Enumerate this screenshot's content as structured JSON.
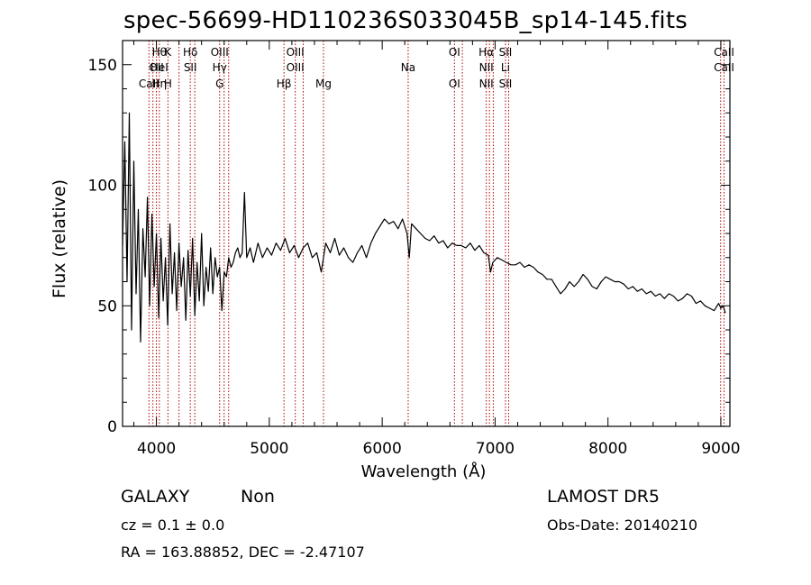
{
  "chart_data": {
    "type": "line",
    "title": "spec-56699-HD110236S033045B_sp14-145.fits",
    "xlabel": "Wavelength (Å)",
    "ylabel": "Flux (relative)",
    "xlim": [
      3700,
      9080
    ],
    "ylim": [
      0,
      160
    ],
    "xticks": [
      4000,
      5000,
      6000,
      7000,
      8000,
      9000
    ],
    "yticks": [
      0,
      50,
      100,
      150
    ],
    "grid": false,
    "series": [
      {
        "color": "#000000",
        "x": [
          3700,
          3720,
          3740,
          3760,
          3780,
          3800,
          3820,
          3840,
          3860,
          3880,
          3900,
          3920,
          3940,
          3960,
          3980,
          4000,
          4020,
          4040,
          4060,
          4080,
          4100,
          4120,
          4140,
          4160,
          4180,
          4200,
          4220,
          4240,
          4260,
          4280,
          4300,
          4320,
          4340,
          4360,
          4380,
          4400,
          4420,
          4440,
          4460,
          4480,
          4500,
          4520,
          4540,
          4560,
          4580,
          4600,
          4620,
          4640,
          4660,
          4680,
          4700,
          4720,
          4740,
          4760,
          4780,
          4800,
          4830,
          4860,
          4900,
          4940,
          4980,
          5020,
          5060,
          5100,
          5140,
          5180,
          5220,
          5260,
          5300,
          5340,
          5380,
          5420,
          5460,
          5500,
          5540,
          5580,
          5620,
          5660,
          5700,
          5740,
          5780,
          5820,
          5860,
          5900,
          5940,
          5980,
          6020,
          6060,
          6100,
          6140,
          6180,
          6220,
          6240,
          6260,
          6300,
          6340,
          6380,
          6420,
          6460,
          6500,
          6540,
          6580,
          6620,
          6660,
          6700,
          6740,
          6780,
          6820,
          6860,
          6900,
          6940,
          6960,
          6980,
          7020,
          7060,
          7100,
          7140,
          7180,
          7220,
          7260,
          7300,
          7340,
          7380,
          7420,
          7460,
          7500,
          7540,
          7580,
          7620,
          7660,
          7700,
          7740,
          7780,
          7820,
          7860,
          7900,
          7940,
          7980,
          8020,
          8060,
          8100,
          8140,
          8180,
          8220,
          8260,
          8300,
          8340,
          8380,
          8420,
          8460,
          8500,
          8540,
          8580,
          8620,
          8660,
          8700,
          8740,
          8780,
          8820,
          8860,
          8900,
          8940,
          8980,
          9000,
          9020,
          9040
        ],
        "y": [
          75,
          118,
          60,
          130,
          40,
          110,
          55,
          90,
          35,
          82,
          62,
          95,
          50,
          88,
          58,
          80,
          45,
          78,
          52,
          70,
          42,
          84,
          55,
          72,
          48,
          76,
          58,
          70,
          44,
          73,
          54,
          78,
          46,
          68,
          52,
          80,
          50,
          66,
          56,
          74,
          55,
          70,
          62,
          66,
          48,
          64,
          62,
          70,
          66,
          68,
          72,
          74,
          70,
          72,
          97,
          70,
          74,
          68,
          76,
          70,
          74,
          71,
          76,
          73,
          78,
          72,
          75,
          70,
          74,
          76,
          70,
          72,
          64,
          76,
          72,
          78,
          71,
          74,
          70,
          68,
          72,
          75,
          70,
          76,
          80,
          83,
          86,
          84,
          85,
          82,
          86,
          80,
          70,
          84,
          82,
          80,
          78,
          77,
          79,
          76,
          77,
          74,
          76,
          75,
          75,
          74,
          76,
          73,
          75,
          72,
          71,
          64,
          68,
          70,
          69,
          68,
          67,
          67,
          68,
          66,
          67,
          66,
          64,
          63,
          61,
          61,
          58,
          55,
          57,
          60,
          58,
          60,
          63,
          61,
          58,
          57,
          60,
          62,
          61,
          60,
          60,
          59,
          57,
          58,
          56,
          57,
          55,
          56,
          54,
          55,
          53,
          55,
          54,
          52,
          53,
          55,
          54,
          51,
          52,
          50,
          49,
          48,
          51,
          49,
          50,
          47
        ]
      }
    ],
    "lines": [
      {
        "x": 3934,
        "labels": [
          "",
          "",
          "CaII"
        ]
      },
      {
        "x": 3969,
        "labels": [
          "",
          "",
          ""
        ]
      },
      {
        "x": 4000,
        "labels": [
          "",
          "OII",
          ""
        ]
      },
      {
        "x": 4026,
        "labels": [
          "Hθ",
          "HeI",
          "Hη"
        ]
      },
      {
        "x": 4102,
        "labels": [
          "K",
          "",
          "H"
        ]
      },
      {
        "x": 4200,
        "labels": [
          "",
          "",
          ""
        ]
      },
      {
        "x": 4300,
        "labels": [
          "Hδ",
          "SII",
          ""
        ]
      },
      {
        "x": 4340,
        "labels": [
          "",
          "",
          ""
        ]
      },
      {
        "x": 4560,
        "labels": [
          "OIII",
          "Hγ",
          "G"
        ]
      },
      {
        "x": 4600,
        "labels": [
          "",
          "",
          ""
        ]
      },
      {
        "x": 4640,
        "labels": [
          "",
          "",
          ""
        ]
      },
      {
        "x": 5130,
        "labels": [
          "",
          "",
          "Hβ"
        ]
      },
      {
        "x": 5230,
        "labels": [
          "OIII",
          "OIII",
          ""
        ]
      },
      {
        "x": 5300,
        "labels": [
          "",
          "",
          ""
        ]
      },
      {
        "x": 5480,
        "labels": [
          "",
          "",
          "Mg"
        ]
      },
      {
        "x": 6230,
        "labels": [
          "",
          "Na",
          ""
        ]
      },
      {
        "x": 6640,
        "labels": [
          "OI",
          "",
          "OI"
        ]
      },
      {
        "x": 6710,
        "labels": [
          "",
          "",
          ""
        ]
      },
      {
        "x": 6922,
        "labels": [
          "Hα",
          "NII",
          "NII"
        ]
      },
      {
        "x": 6950,
        "labels": [
          "",
          "",
          ""
        ]
      },
      {
        "x": 6984,
        "labels": [
          "",
          "",
          ""
        ]
      },
      {
        "x": 7092,
        "labels": [
          "SII",
          "Li",
          "SII"
        ]
      },
      {
        "x": 7120,
        "labels": [
          "",
          "",
          ""
        ]
      },
      {
        "x": 8998,
        "labels": [
          "",
          "",
          ""
        ]
      },
      {
        "x": 9028,
        "labels": [
          "CaII",
          "CaII",
          ""
        ]
      }
    ],
    "line_color": "#b00000"
  },
  "info": {
    "class_label": "GALAXY",
    "subclass_label": "Non",
    "redshift": "cz = 0.1 ± 0.0",
    "coords": "RA = 163.88852, DEC =  -2.47107",
    "survey": "LAMOST DR5",
    "obs_date": "Obs-Date: 20140210"
  }
}
